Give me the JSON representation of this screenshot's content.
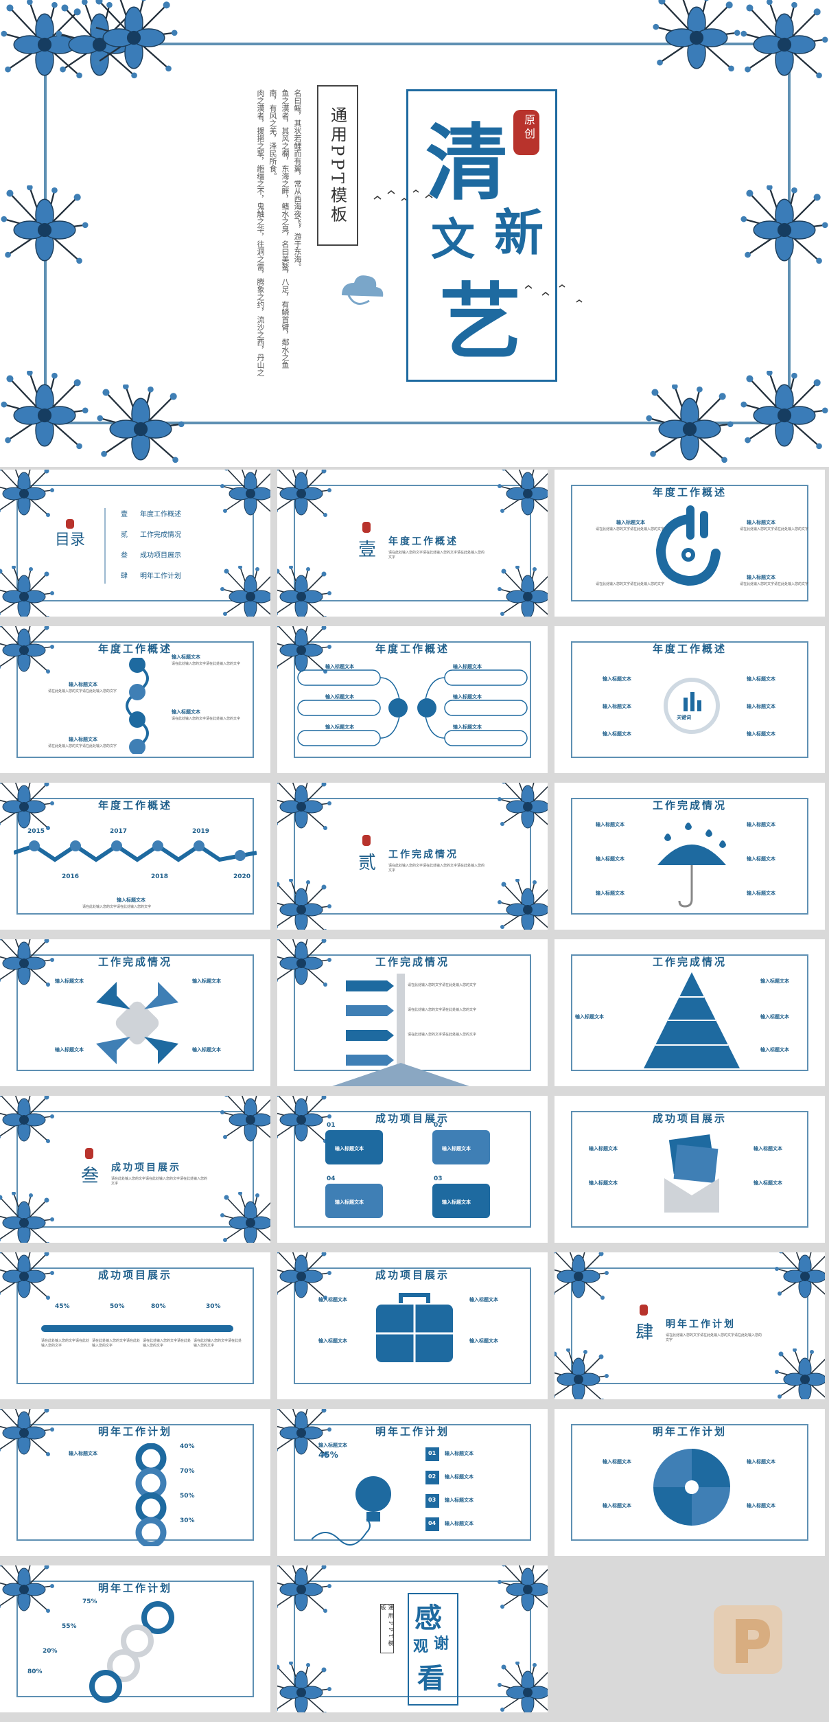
{
  "hero": {
    "title_chars": [
      "清",
      "新",
      "文",
      "艺"
    ],
    "seal_text": "原创",
    "subtitle": "通用PPT模板",
    "poem_lines": [
      "肉之漠者，援挹之挈，縆缰之不，鬼触之华，往洞之雷，腾象之约，流沙之西，丹山之",
      "南，有风之羌，泽民所食。",
      "鱼之漠者，其风之欄，东海之畔，鳍水之臭，名曰美鳌，八足，有鳞首臂，鄰水之鱼",
      "名曰鳐，其状若鲤而有翼，常从西海夜飞，游于东海。"
    ]
  },
  "toc": {
    "title": "目录",
    "items": [
      {
        "num": "壹",
        "label": "年度工作概述"
      },
      {
        "num": "贰",
        "label": "工作完成情况"
      },
      {
        "num": "叁",
        "label": "成功项目展示"
      },
      {
        "num": "肆",
        "label": "明年工作计划"
      }
    ]
  },
  "sections": [
    {
      "num": "壹",
      "title": "年度工作概述"
    },
    {
      "num": "贰",
      "title": "工作完成情况"
    },
    {
      "num": "叁",
      "title": "成功项目展示"
    },
    {
      "num": "肆",
      "title": "明年工作计划"
    }
  ],
  "section_sub": "请在此处输入您的文字请在此处输入您的文字请在此处输入您的文字",
  "slide_titles": {
    "s1": "年度工作概述",
    "s2": "工作完成情况",
    "s3": "成功项目展示",
    "s4": "明年工作计划"
  },
  "placeholder_title": "输入标题文本",
  "placeholder_desc": "请在此处输入您的文字请在此处输入您的文字",
  "keyword": "关键词",
  "years": [
    "2015",
    "2016",
    "2017",
    "2018",
    "2019",
    "2020"
  ],
  "flow_nums": [
    "01",
    "02",
    "03",
    "04"
  ],
  "percents_a": [
    "45%",
    "50%",
    "80%",
    "30%"
  ],
  "percents_b": [
    "40%",
    "70%",
    "50%",
    "30%"
  ],
  "bulb_pct": "45%",
  "bulb_nums": [
    "01",
    "02",
    "03",
    "04"
  ],
  "circle_pcts": [
    "75%",
    "55%",
    "20%",
    "80%"
  ],
  "thanks": {
    "chars": [
      "感",
      "谢",
      "观",
      "看"
    ],
    "subtitle": "通用PPT模板"
  },
  "colors": {
    "primary": "#1e6aa0",
    "frame": "#5e90b3",
    "accent": "#b8332c",
    "bg": "#d9d9d9"
  }
}
